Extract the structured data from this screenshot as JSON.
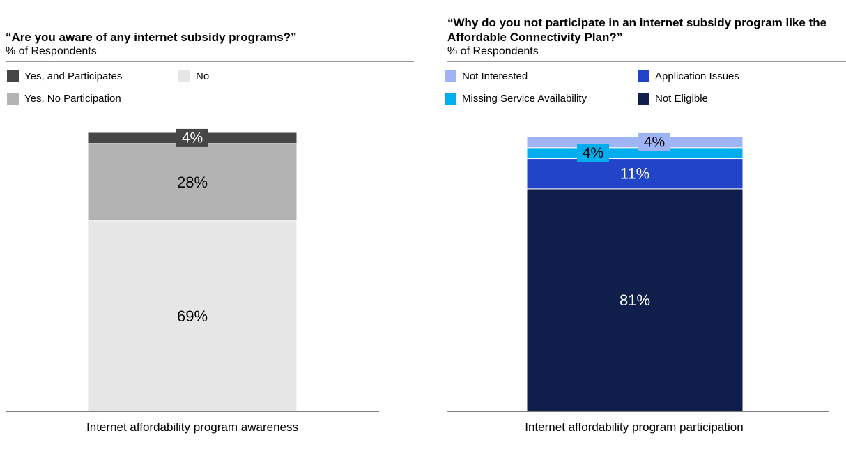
{
  "chart_data": [
    {
      "type": "bar",
      "stacked": true,
      "title": "“Are you aware of any internet subsidy programs?”",
      "subtitle": "% of Respondents",
      "categories": [
        "Internet affordability program awareness"
      ],
      "series": [
        {
          "name": "No",
          "values": [
            69
          ],
          "color": "#e6e6e6",
          "label": "69%",
          "label_color": "#000000"
        },
        {
          "name": "Yes, No Participation",
          "values": [
            28
          ],
          "color": "#b3b3b3",
          "label": "28%",
          "label_color": "#000000"
        },
        {
          "name": "Yes, and Participates",
          "values": [
            4
          ],
          "color": "#464646",
          "label": "4%",
          "label_color": "#ffffff"
        }
      ],
      "legend": {
        "placement": "top-left",
        "order": [
          "Yes, and Participates",
          "No",
          "Yes, No Participation"
        ]
      },
      "ylim": [
        0,
        100
      ],
      "grid": false
    },
    {
      "type": "bar",
      "stacked": true,
      "title": "“Why do you not participate in an internet subsidy program like the Affordable Connectivity Plan?”",
      "subtitle": "% of Respondents",
      "categories": [
        "Internet affordability program participation"
      ],
      "series": [
        {
          "name": "Not Eligible",
          "values": [
            81
          ],
          "color": "#0f1e4a",
          "label": "81%",
          "label_color": "#ffffff"
        },
        {
          "name": "Application Issues",
          "values": [
            11
          ],
          "color": "#2244c8",
          "label": "11%",
          "label_color": "#ffffff"
        },
        {
          "name": "Missing Service Availability",
          "values": [
            4
          ],
          "color": "#00adef",
          "label": "4%",
          "label_color": "#000000"
        },
        {
          "name": "Not Interested",
          "values": [
            4
          ],
          "color": "#9fb4f5",
          "label": "4%",
          "label_color": "#000000"
        }
      ],
      "legend": {
        "placement": "top-left",
        "order": [
          "Not Interested",
          "Application Issues",
          "Missing Service Availability",
          "Not Eligible"
        ]
      },
      "ylim": [
        0,
        100
      ],
      "grid": false
    }
  ]
}
